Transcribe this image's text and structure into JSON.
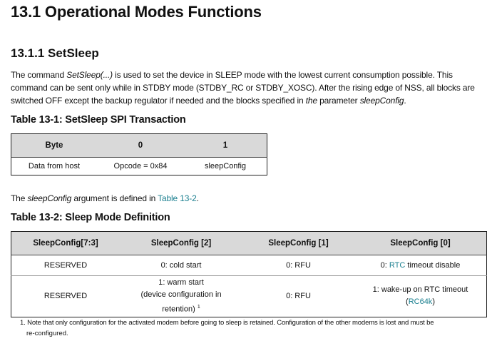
{
  "heading": "13.1 Operational Modes Functions",
  "subheading": "13.1.1 SetSleep",
  "paragraph": {
    "l1a": "The command ",
    "l1b": "SetSleep(...)",
    "l1c": " is used to set the device in SLEEP mode with the lowest current consumption possible. This",
    "l2": "command can be sent only while in STDBY mode (STDBY_RC or STDBY_XOSC). After the rising edge of NSS, all blocks are",
    "l3a": "switched OFF except the backup regulator if needed and the blocks specified in ",
    "l3b": "the",
    "l3c": " parameter ",
    "l3d": "sleepConfig",
    "l3e": "."
  },
  "table1": {
    "title": "Table 13-1: SetSleep SPI Transaction",
    "headers": [
      "Byte",
      "0",
      "1"
    ],
    "row": [
      "Data from host",
      "Opcode = 0x84",
      "sleepConfig"
    ]
  },
  "sentence": {
    "a": "The ",
    "b": "sleepConfig",
    "c": " argument is defined in ",
    "link": "Table 13-2",
    "d": "."
  },
  "table2": {
    "title": "Table 13-2: Sleep Mode Definition",
    "headers": [
      "SleepConfig[7:3]",
      "SleepConfig [2]",
      "SleepConfig [1]",
      "SleepConfig [0]"
    ],
    "row1": {
      "c0": "RESERVED",
      "c1": "0: cold start",
      "c2": "0: RFU",
      "c3a": "0: ",
      "c3link": "RTC",
      "c3b": " timeout disable"
    },
    "row2": {
      "c0": "RESERVED",
      "c1a": "1: warm start",
      "c1b": "(device configuration in",
      "c1c": "retention)",
      "c1sup": "1",
      "c2": "0: RFU",
      "c3a": "1: wake-up on RTC timeout",
      "c3b": "(",
      "c3link": "RC64k",
      "c3c": ")"
    }
  },
  "footnote": {
    "l1": "1. Note that only configuration for the activated modem before going to sleep is retained. Configuration of the other modems is lost and must be",
    "l2": "re-configured."
  },
  "colors": {
    "link": "#1a7f8f",
    "header_bg": "#d9d9d9"
  }
}
